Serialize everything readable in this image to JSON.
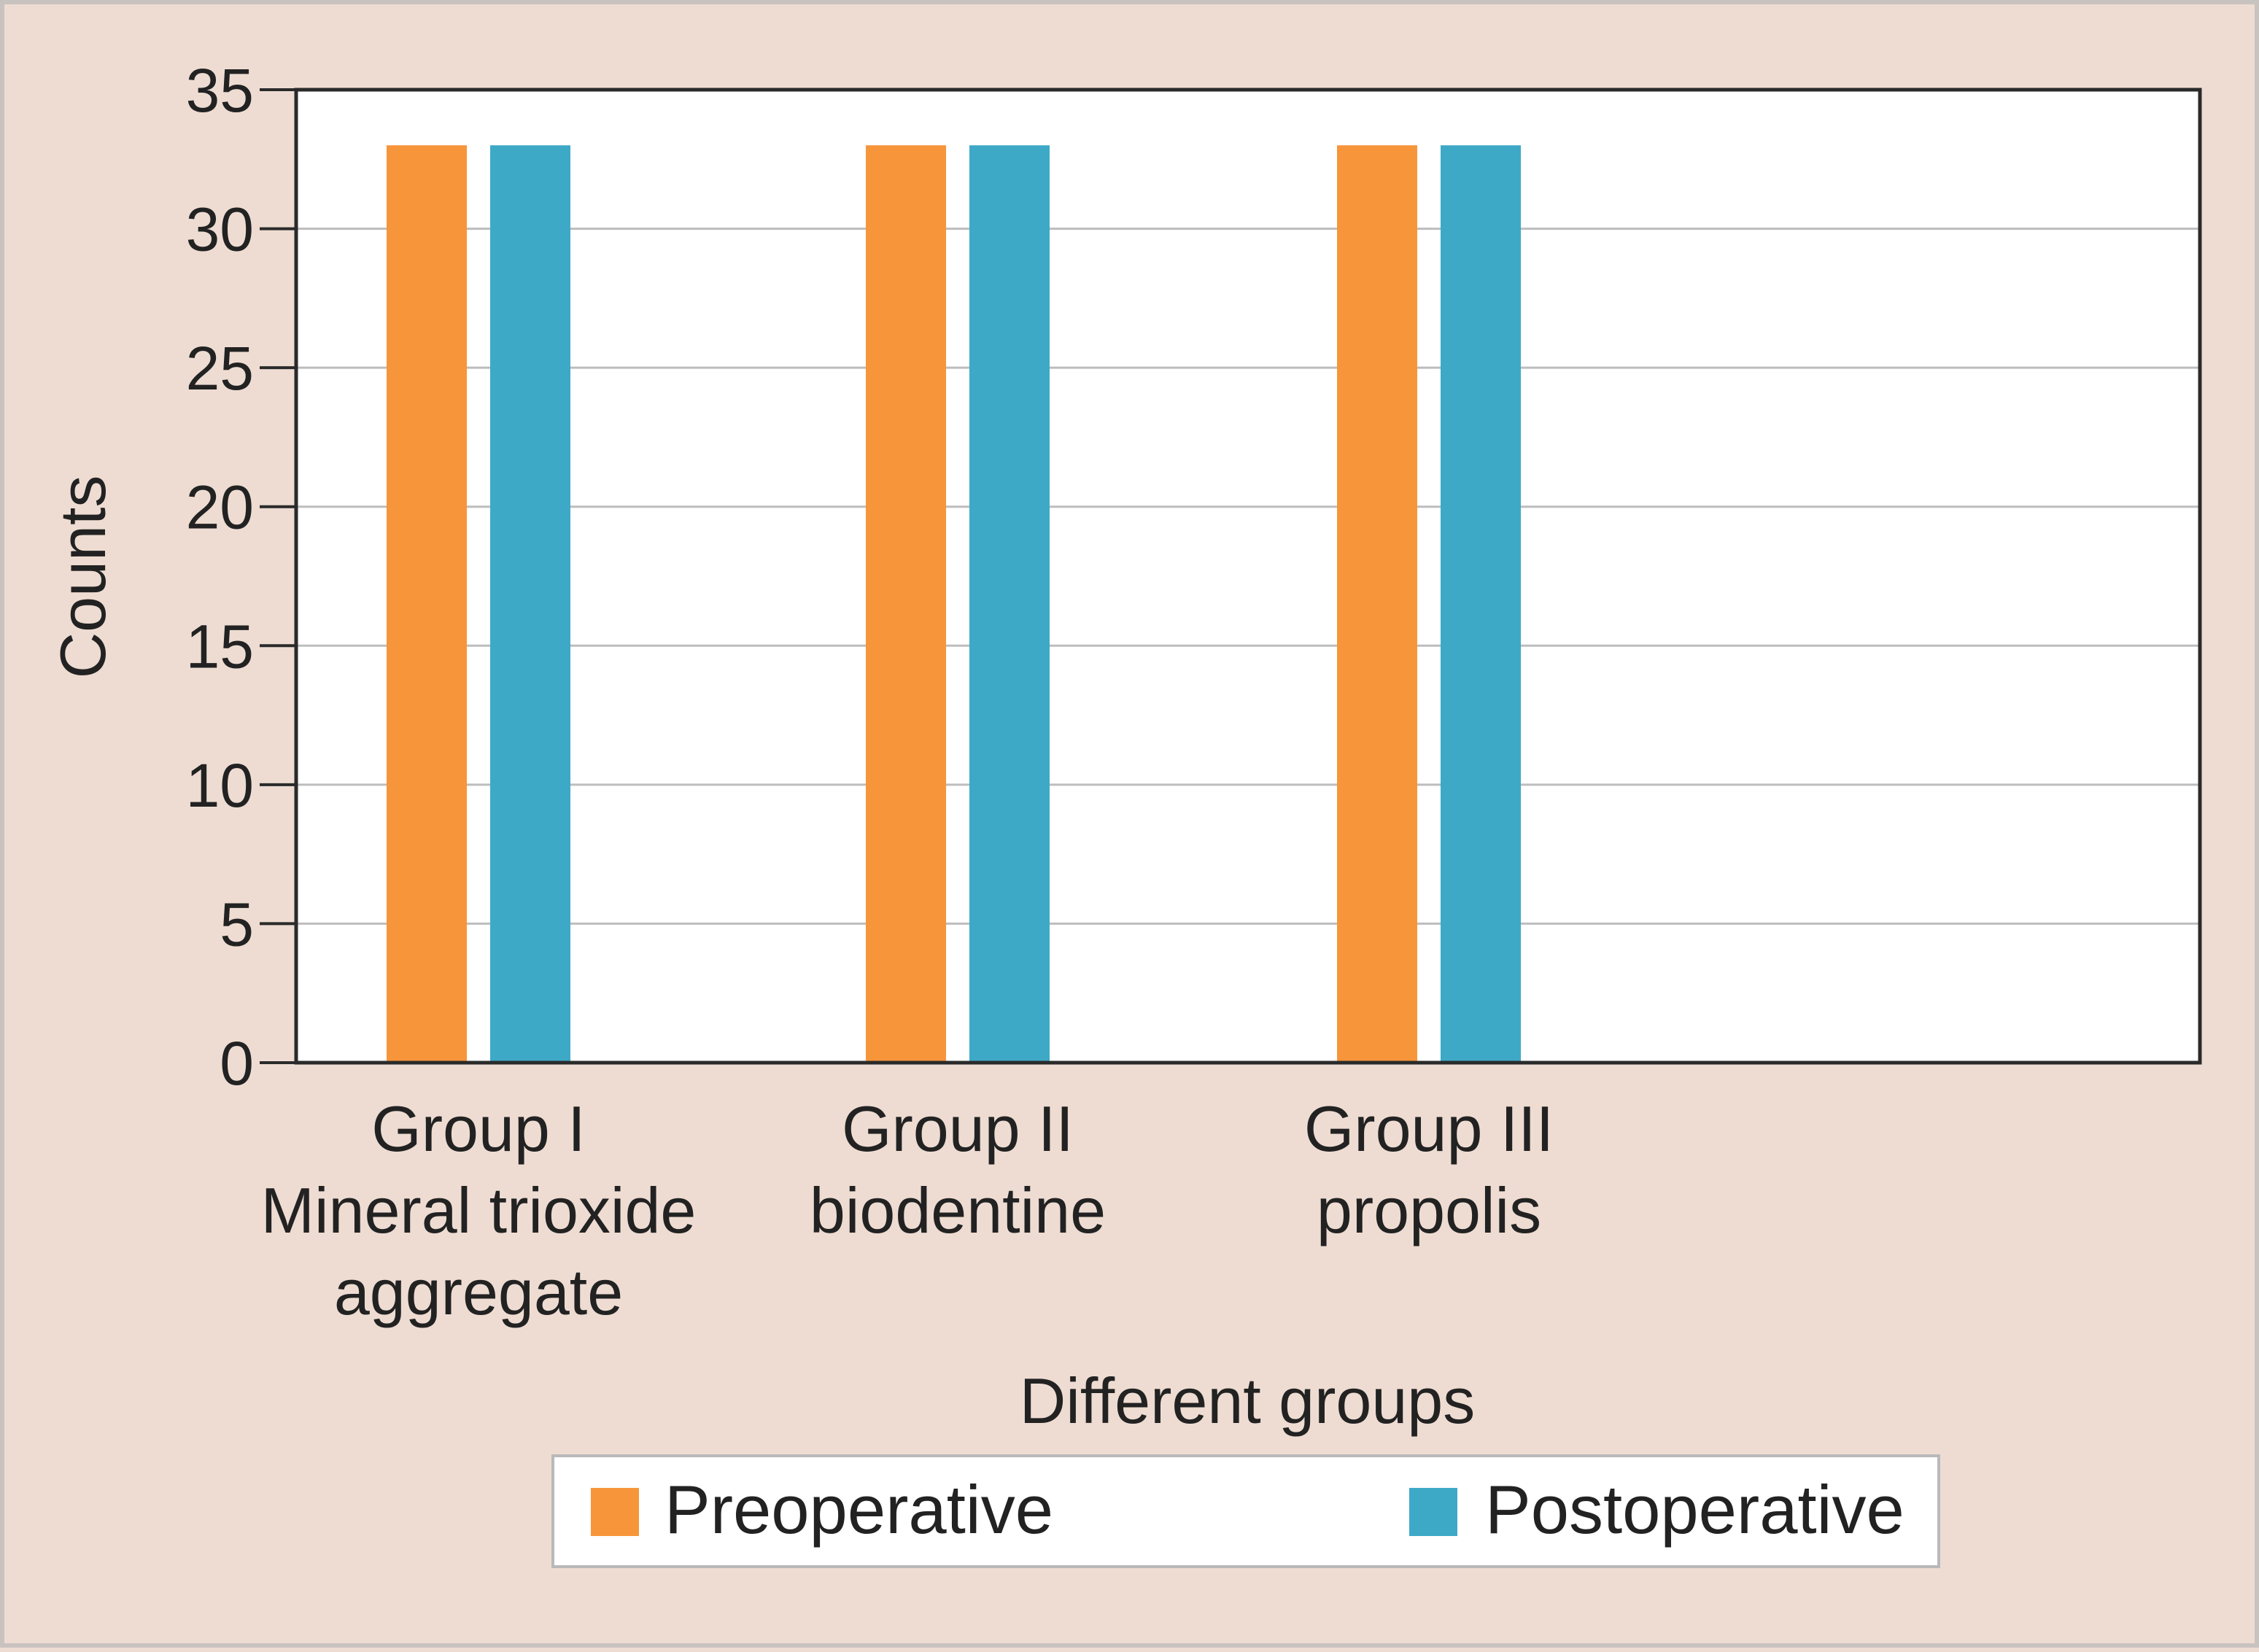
{
  "chart_data": {
    "type": "bar",
    "categories": [
      [
        "Group I",
        "Mineral trioxide",
        "aggregate"
      ],
      [
        "Group II",
        "biodentine"
      ],
      [
        "Group III",
        "propolis"
      ]
    ],
    "series": [
      {
        "name": "Preoperative",
        "values": [
          33,
          33,
          33
        ],
        "color": "#f7953a"
      },
      {
        "name": "Postoperative",
        "values": [
          33,
          33,
          33
        ],
        "color": "#3ea9c7"
      }
    ],
    "xlabel": "Different groups",
    "ylabel": "Counts",
    "ylim": [
      0,
      35
    ],
    "yticks": [
      0,
      5,
      10,
      15,
      20,
      25,
      30,
      35
    ],
    "grid": true,
    "legend_position": "bottom"
  }
}
